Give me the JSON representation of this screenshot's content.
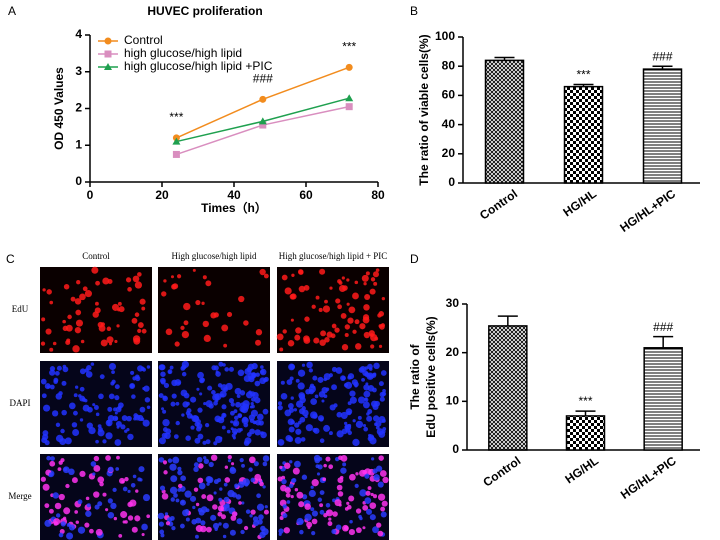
{
  "chart_data": [
    {
      "type": "line",
      "label": "A",
      "title": "HUVEC proliferation",
      "xlabel": "Times（h）",
      "ylabel": "OD 450 Values",
      "x": [
        24,
        48,
        72
      ],
      "series": [
        {
          "name": "Control",
          "color": "#f28c1e",
          "marker": "circle",
          "values": [
            1.2,
            2.25,
            3.12
          ]
        },
        {
          "name": "high glucose/high lipid",
          "color": "#d98ebf",
          "marker": "square",
          "values": [
            0.75,
            1.55,
            2.05
          ]
        },
        {
          "name": "high glucose/high lipid +PIC",
          "color": "#1fa04f",
          "marker": "triangle",
          "values": [
            1.1,
            1.65,
            2.28
          ]
        }
      ],
      "annotations": [
        "***",
        "###",
        "***"
      ],
      "xlim": [
        0,
        80
      ],
      "xticks": [
        0,
        20,
        40,
        60,
        80
      ],
      "ylim": [
        0,
        4
      ],
      "yticks": [
        0,
        1,
        2,
        3,
        4
      ]
    },
    {
      "type": "bar",
      "label": "B",
      "ylabel": [
        "The ratio of viable cells(%)"
      ],
      "categories": [
        "Control",
        "HG/HL",
        "HG/HL+PIC"
      ],
      "values": [
        84,
        66,
        78
      ],
      "errors": [
        2,
        1.5,
        2
      ],
      "annotations": [
        null,
        "***",
        "###"
      ],
      "color": "#000000",
      "ylim": [
        0,
        100
      ],
      "yticks": [
        0,
        20,
        40,
        60,
        80,
        100
      ]
    },
    {
      "type": "bar",
      "label": "D",
      "ylabel": [
        "The ratio of",
        "EdU positive cells(%)"
      ],
      "categories": [
        "Control",
        "HG/HL",
        "HG/HL+PIC"
      ],
      "values": [
        25.5,
        7,
        21
      ],
      "errors": [
        2,
        1,
        2.3
      ],
      "annotations": [
        null,
        "***",
        "###"
      ],
      "color": "#000000",
      "ylim": [
        0,
        30
      ],
      "yticks": [
        0,
        10,
        20,
        30
      ]
    }
  ],
  "image_panel": {
    "label": "C",
    "columns": [
      "Control",
      "High glucose/high lipid",
      "High glucose/high lipid + PIC"
    ],
    "rows": [
      "EdU",
      "DAPI",
      "Merge"
    ]
  }
}
